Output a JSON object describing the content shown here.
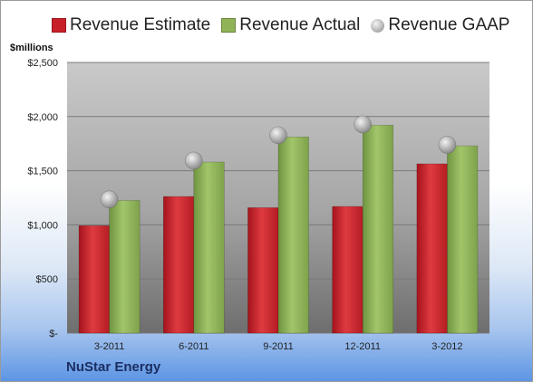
{
  "legend": {
    "estimate_label": "Revenue Estimate",
    "actual_label": "Revenue Actual",
    "gaap_label": "Revenue GAAP"
  },
  "unit_label": "$millions",
  "company": "NuStar Energy",
  "colors": {
    "estimate": "#c8202a",
    "actual": "#8fb356",
    "gaap_marker": "#b8b8b8",
    "plot_top": "#c7c7c7",
    "plot_bottom": "#6f6f6f"
  },
  "chart_data": {
    "type": "bar",
    "title": "",
    "xlabel": "",
    "ylabel": "$millions",
    "categories": [
      "3-2011",
      "6-2011",
      "9-2011",
      "12-2011",
      "3-2012"
    ],
    "series": [
      {
        "name": "Revenue Estimate",
        "values": [
          993,
          1262,
          1159,
          1170,
          1564
        ]
      },
      {
        "name": "Revenue Actual",
        "values": [
          1225,
          1580,
          1812,
          1921,
          1730
        ]
      },
      {
        "name": "Revenue GAAP",
        "values": [
          1235,
          1593,
          1828,
          1928,
          1739
        ]
      }
    ],
    "ylim": [
      0,
      2500
    ],
    "yticks": [
      0,
      500,
      1000,
      1500,
      2000,
      2500
    ],
    "ytick_labels": [
      "$-",
      "$500",
      "$1,000",
      "$1,500",
      "$2,000",
      "$2,500"
    ],
    "grid": true,
    "legend_position": "top"
  }
}
